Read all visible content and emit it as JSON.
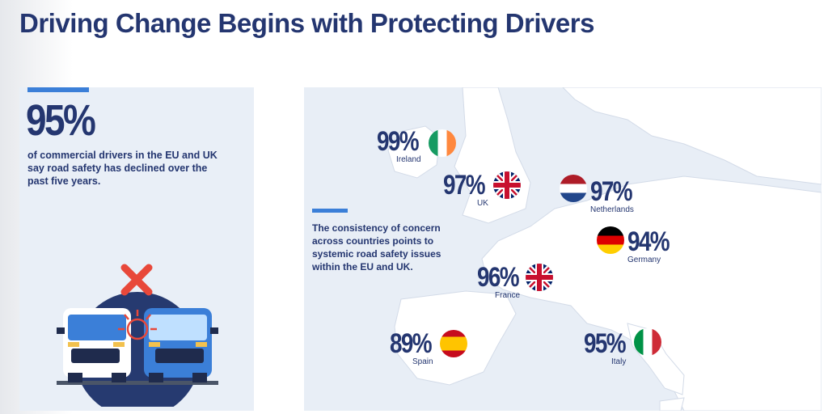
{
  "header": {
    "title": "Driving Change Begins with Protecting Drivers"
  },
  "stat_card": {
    "value": "95%",
    "description": "of commercial drivers in the EU and UK say road safety has declined over the past five years."
  },
  "map": {
    "note": "The consistency of concern across countries points to systemic road safety issues within the EU and UK.",
    "countries": [
      {
        "pct": "99%",
        "name": "Ireland",
        "flag": "ireland-flag-icon"
      },
      {
        "pct": "97%",
        "name": "UK",
        "flag": "uk-flag-icon"
      },
      {
        "pct": "97%",
        "name": "Netherlands",
        "flag": "netherlands-flag-icon"
      },
      {
        "pct": "94%",
        "name": "Germany",
        "flag": "germany-flag-icon"
      },
      {
        "pct": "96%",
        "name": "France",
        "flag": "uk-flag-icon"
      },
      {
        "pct": "89%",
        "name": "Spain",
        "flag": "spain-flag-icon"
      },
      {
        "pct": "95%",
        "name": "Italy",
        "flag": "italy-flag-icon"
      }
    ]
  },
  "colors": {
    "navy": "#243670",
    "accent": "#3b7fd8",
    "panel": "#e9eff7",
    "cross": "#e8483a"
  }
}
